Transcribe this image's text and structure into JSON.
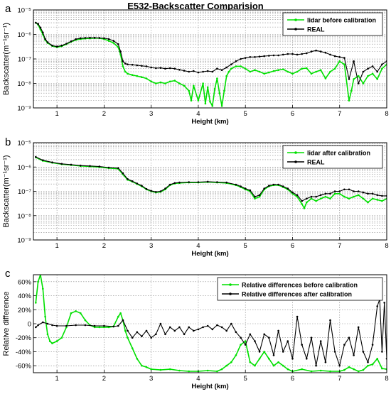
{
  "figure": {
    "title": "E532-Backscatter Comparision"
  },
  "chart_data": [
    {
      "type": "line",
      "panel_label": "a",
      "xlabel": "Height (km)",
      "ylabel": "Backscatter(m⁻¹sr⁻¹)",
      "xlim": [
        0.5,
        8
      ],
      "ylim": [
        1e-09,
        1e-05
      ],
      "yscale": "log",
      "x_ticks": [
        "1",
        "2",
        "3",
        "4",
        "5",
        "6",
        "7",
        "8"
      ],
      "y_ticks": [
        "10⁻⁹",
        "10⁻⁸",
        "10⁻⁷",
        "10⁻⁶",
        "10⁻⁵"
      ],
      "grid": true,
      "legend_position": "top-right",
      "series": [
        {
          "name": "lidar before calibration",
          "color": "#00e000",
          "x": [
            0.55,
            0.6,
            0.65,
            0.7,
            0.75,
            0.8,
            0.9,
            1.0,
            1.1,
            1.2,
            1.3,
            1.4,
            1.5,
            1.6,
            1.7,
            1.8,
            1.9,
            2.0,
            2.1,
            2.2,
            2.3,
            2.35,
            2.4,
            2.45,
            2.5,
            2.6,
            2.7,
            2.8,
            2.9,
            3.0,
            3.1,
            3.2,
            3.3,
            3.4,
            3.5,
            3.6,
            3.7,
            3.8,
            3.85,
            3.9,
            4.0,
            4.1,
            4.15,
            4.2,
            4.25,
            4.3,
            4.35,
            4.4,
            4.45,
            4.5,
            4.55,
            4.6,
            4.65,
            4.7,
            4.8,
            4.9,
            5.0,
            5.1,
            5.2,
            5.3,
            5.4,
            5.5,
            5.6,
            5.7,
            5.8,
            5.9,
            6.0,
            6.1,
            6.2,
            6.3,
            6.4,
            6.5,
            6.6,
            6.7,
            6.8,
            6.9,
            7.0,
            7.1,
            7.2,
            7.25,
            7.3,
            7.4,
            7.5,
            7.6,
            7.7,
            7.8,
            7.9,
            8.0
          ],
          "y": [
            3e-06,
            2.5e-06,
            1.6e-06,
            1e-06,
            6e-07,
            4.5e-07,
            3.4e-07,
            3e-07,
            3.3e-07,
            4e-07,
            5e-07,
            6e-07,
            6.5e-07,
            6.8e-07,
            6.9e-07,
            7e-07,
            7e-07,
            6.5e-07,
            5.5e-07,
            4.5e-07,
            3e-07,
            1.5e-07,
            5e-08,
            3e-08,
            2.5e-08,
            2.2e-08,
            2e-08,
            1.8e-08,
            1.6e-08,
            1.2e-08,
            1e-08,
            1.1e-08,
            1e-08,
            1.2e-08,
            1.3e-08,
            1e-08,
            8e-09,
            5e-09,
            2e-09,
            8e-09,
            2e-09,
            1e-08,
            1.5e-09,
            7e-09,
            1.8e-09,
            1.2e-09,
            6e-09,
            1.6e-08,
            4e-09,
            1.2e-09,
            5e-09,
            2e-08,
            3e-08,
            4e-08,
            5e-08,
            5e-08,
            4e-08,
            3e-08,
            3.5e-08,
            3e-08,
            2.5e-08,
            2.8e-08,
            3.2e-08,
            3.5e-08,
            3.8e-08,
            3e-08,
            2.5e-08,
            3e-08,
            4e-08,
            4.2e-08,
            2.5e-08,
            3e-08,
            3.5e-08,
            1.6e-08,
            3e-08,
            4e-08,
            8e-08,
            6e-08,
            2e-09,
            5e-09,
            1.5e-08,
            2e-08,
            1e-08,
            2e-08,
            2.5e-08,
            1.5e-08,
            4e-08,
            6e-08
          ]
        },
        {
          "name": "REAL",
          "color": "#000000",
          "x": [
            0.55,
            0.6,
            0.65,
            0.7,
            0.75,
            0.8,
            0.9,
            1.0,
            1.1,
            1.2,
            1.3,
            1.4,
            1.5,
            1.6,
            1.7,
            1.8,
            1.9,
            2.0,
            2.1,
            2.2,
            2.3,
            2.35,
            2.4,
            2.45,
            2.5,
            2.6,
            2.7,
            2.8,
            2.9,
            3.0,
            3.1,
            3.2,
            3.3,
            3.4,
            3.5,
            3.6,
            3.7,
            3.8,
            3.9,
            4.0,
            4.1,
            4.2,
            4.3,
            4.4,
            4.5,
            4.6,
            4.7,
            4.8,
            4.9,
            5.0,
            5.1,
            5.2,
            5.3,
            5.4,
            5.5,
            5.6,
            5.7,
            5.8,
            5.9,
            6.0,
            6.1,
            6.2,
            6.3,
            6.4,
            6.5,
            6.6,
            6.7,
            6.8,
            6.9,
            7.0,
            7.1,
            7.2,
            7.3,
            7.4,
            7.5,
            7.6,
            7.7,
            7.8,
            7.9,
            8.0
          ],
          "y": [
            3e-06,
            2.7e-06,
            1.9e-06,
            1.2e-06,
            6.5e-07,
            4.8e-07,
            3.5e-07,
            3.2e-07,
            3.5e-07,
            4.2e-07,
            5.2e-07,
            6.4e-07,
            7e-07,
            7.2e-07,
            7.3e-07,
            7.3e-07,
            7.2e-07,
            7e-07,
            6.5e-07,
            5.5e-07,
            4e-07,
            2e-07,
            8e-08,
            6.5e-08,
            6e-08,
            5.8e-08,
            5.5e-08,
            5.2e-08,
            5e-08,
            4.5e-08,
            4.2e-08,
            4.3e-08,
            4e-08,
            4.2e-08,
            4e-08,
            3.6e-08,
            3.3e-08,
            3e-08,
            3.2e-08,
            2.8e-08,
            3e-08,
            3.2e-08,
            3e-08,
            4e-08,
            3.5e-08,
            4.5e-08,
            6e-08,
            8e-08,
            1e-07,
            1.1e-07,
            1.2e-07,
            1.2e-07,
            1.25e-07,
            1.3e-07,
            1.35e-07,
            1.4e-07,
            1.4e-07,
            1.5e-07,
            1.6e-07,
            1.6e-07,
            1.5e-07,
            1.6e-07,
            1.7e-07,
            2e-07,
            2.2e-07,
            2e-07,
            1.8e-07,
            1.5e-07,
            1.3e-07,
            1.2e-07,
            1.1e-07,
            1.5e-08,
            8e-08,
            1e-08,
            3e-08,
            4e-08,
            5e-08,
            3e-08,
            6e-08,
            8e-08
          ]
        }
      ]
    },
    {
      "type": "line",
      "panel_label": "b",
      "xlabel": "Height (km)",
      "ylabel": "Backscatter(m⁻¹sr⁻¹)",
      "xlim": [
        0.5,
        8
      ],
      "ylim": [
        1e-09,
        1e-05
      ],
      "yscale": "log",
      "x_ticks": [
        "1",
        "2",
        "3",
        "4",
        "5",
        "6",
        "7",
        "8"
      ],
      "y_ticks": [
        "10⁻⁹",
        "10⁻⁸",
        "10⁻⁷",
        "10⁻⁶",
        "10⁻⁵"
      ],
      "grid": true,
      "legend_position": "top-right",
      "series": [
        {
          "name": "lidar after calibration",
          "color": "#00e000",
          "x": [
            0.55,
            0.7,
            0.9,
            1.1,
            1.3,
            1.5,
            1.7,
            1.9,
            2.1,
            2.3,
            2.4,
            2.5,
            2.6,
            2.7,
            2.8,
            2.9,
            3.0,
            3.1,
            3.2,
            3.3,
            3.4,
            3.5,
            3.6,
            3.8,
            4.0,
            4.2,
            4.4,
            4.6,
            4.8,
            4.9,
            5.0,
            5.1,
            5.2,
            5.3,
            5.4,
            5.5,
            5.6,
            5.7,
            5.8,
            5.9,
            6.0,
            6.1,
            6.2,
            6.25,
            6.3,
            6.4,
            6.5,
            6.6,
            6.7,
            6.8,
            6.9,
            7.0,
            7.1,
            7.2,
            7.3,
            7.4,
            7.5,
            7.6,
            7.7,
            7.8,
            7.9,
            8.0
          ],
          "y": [
            2.5e-06,
            1.8e-06,
            1.5e-06,
            1.3e-06,
            1.2e-06,
            1.1e-06,
            1.05e-06,
            1e-06,
            9e-07,
            8.5e-07,
            5e-07,
            3e-07,
            2.5e-07,
            2e-07,
            1.6e-07,
            1.2e-07,
            1e-07,
            9e-08,
            9.5e-08,
            1.2e-07,
            1.8e-07,
            2.1e-07,
            2.2e-07,
            2.3e-07,
            2.3e-07,
            2.4e-07,
            2.3e-07,
            2.2e-07,
            1.8e-07,
            1.5e-07,
            1.2e-07,
            1e-07,
            5e-08,
            6e-08,
            1.2e-07,
            1.6e-07,
            1.8e-07,
            1.8e-07,
            1.5e-07,
            1.2e-07,
            8e-08,
            6e-08,
            3e-08,
            2e-08,
            3.5e-08,
            5e-08,
            4e-08,
            5e-08,
            6e-08,
            5e-08,
            8e-08,
            8e-08,
            6e-08,
            5e-08,
            6e-08,
            7e-08,
            5e-08,
            3.5e-08,
            5e-08,
            4.5e-08,
            4e-08,
            5e-08
          ]
        },
        {
          "name": "REAL",
          "color": "#000000",
          "x": [
            0.55,
            0.7,
            0.9,
            1.1,
            1.3,
            1.5,
            1.7,
            1.9,
            2.1,
            2.3,
            2.4,
            2.5,
            2.6,
            2.7,
            2.8,
            2.9,
            3.0,
            3.1,
            3.2,
            3.3,
            3.4,
            3.5,
            3.6,
            3.8,
            4.0,
            4.2,
            4.4,
            4.6,
            4.8,
            4.9,
            5.0,
            5.1,
            5.2,
            5.3,
            5.4,
            5.5,
            5.6,
            5.7,
            5.8,
            5.9,
            6.0,
            6.1,
            6.2,
            6.3,
            6.4,
            6.5,
            6.6,
            6.7,
            6.8,
            6.9,
            7.0,
            7.1,
            7.2,
            7.3,
            7.4,
            7.5,
            7.6,
            7.7,
            7.8,
            7.9,
            8.0
          ],
          "y": [
            2.6e-06,
            1.9e-06,
            1.55e-06,
            1.35e-06,
            1.25e-06,
            1.15e-06,
            1.1e-06,
            1.05e-06,
            9.5e-07,
            9e-07,
            5.5e-07,
            3.2e-07,
            2.6e-07,
            2.1e-07,
            1.7e-07,
            1.25e-07,
            1.05e-07,
            9.5e-08,
            1e-07,
            1.3e-07,
            1.9e-07,
            2.2e-07,
            2.3e-07,
            2.4e-07,
            2.4e-07,
            2.5e-07,
            2.4e-07,
            2.3e-07,
            1.9e-07,
            1.6e-07,
            1.3e-07,
            1.1e-07,
            6e-08,
            7e-08,
            1.3e-07,
            1.7e-07,
            1.9e-07,
            1.9e-07,
            1.6e-07,
            1.3e-07,
            9e-08,
            7e-08,
            4e-08,
            5e-08,
            6e-08,
            6e-08,
            7e-08,
            8e-08,
            8e-08,
            1e-07,
            1e-07,
            1.2e-07,
            1.2e-07,
            1e-07,
            1e-07,
            9e-08,
            8e-08,
            8e-08,
            7e-08,
            6.5e-08,
            6.5e-08
          ]
        }
      ]
    },
    {
      "type": "line",
      "panel_label": "c",
      "xlabel": "Height (km)",
      "ylabel": "Relative difference",
      "xlim": [
        0.5,
        8
      ],
      "ylim": [
        -70,
        70
      ],
      "x_ticks": [
        "1",
        "2",
        "3",
        "4",
        "5",
        "6",
        "7",
        "8"
      ],
      "y_ticks": [
        "-60%",
        "-40%",
        "-20%",
        "0",
        "20%",
        "40%",
        "60%"
      ],
      "grid": true,
      "legend_position": "top-right",
      "series": [
        {
          "name": "Relative differences before calibration",
          "color": "#00e000",
          "x": [
            0.55,
            0.6,
            0.65,
            0.7,
            0.75,
            0.8,
            0.85,
            0.9,
            1.0,
            1.1,
            1.2,
            1.3,
            1.4,
            1.5,
            1.6,
            1.7,
            1.8,
            1.9,
            2.0,
            2.1,
            2.2,
            2.3,
            2.35,
            2.4,
            2.45,
            2.5,
            2.6,
            2.7,
            2.8,
            2.9,
            3.0,
            3.2,
            3.4,
            3.6,
            3.8,
            4.0,
            4.2,
            4.4,
            4.5,
            4.6,
            4.7,
            4.8,
            4.9,
            5.0,
            5.05,
            5.1,
            5.2,
            5.3,
            5.4,
            5.5,
            5.6,
            5.7,
            5.8,
            5.9,
            6.0,
            6.2,
            6.4,
            6.6,
            6.8,
            7.0,
            7.1,
            7.2,
            7.3,
            7.4,
            7.5,
            7.6,
            7.7,
            7.8,
            7.9,
            8.0
          ],
          "y": [
            30,
            60,
            70,
            50,
            10,
            -15,
            -25,
            -28,
            -25,
            -20,
            -5,
            15,
            18,
            15,
            5,
            -2,
            -5,
            -5,
            -5,
            -5,
            -4,
            10,
            15,
            5,
            -10,
            -20,
            -35,
            -50,
            -60,
            -62,
            -65,
            -66,
            -65,
            -67,
            -68,
            -68,
            -67,
            -68,
            -65,
            -60,
            -55,
            -45,
            -30,
            -25,
            -40,
            -55,
            -60,
            -50,
            -40,
            -50,
            -60,
            -55,
            -60,
            -65,
            -68,
            -65,
            -68,
            -67,
            -68,
            -68,
            -66,
            -62,
            -65,
            -68,
            -66,
            -60,
            -58,
            -50,
            -64,
            -65
          ]
        },
        {
          "name": "Relative differences after calibration",
          "color": "#000000",
          "x": [
            0.55,
            0.6,
            0.7,
            0.8,
            0.9,
            1.0,
            1.2,
            1.4,
            1.6,
            1.8,
            2.0,
            2.2,
            2.3,
            2.4,
            2.5,
            2.6,
            2.7,
            2.8,
            2.9,
            3.0,
            3.1,
            3.2,
            3.3,
            3.4,
            3.5,
            3.6,
            3.7,
            3.8,
            3.9,
            4.0,
            4.1,
            4.2,
            4.3,
            4.4,
            4.5,
            4.6,
            4.7,
            4.8,
            4.9,
            5.0,
            5.1,
            5.2,
            5.3,
            5.4,
            5.5,
            5.6,
            5.7,
            5.8,
            5.9,
            6.0,
            6.1,
            6.2,
            6.3,
            6.4,
            6.5,
            6.6,
            6.7,
            6.8,
            6.9,
            7.0,
            7.1,
            7.2,
            7.3,
            7.4,
            7.5,
            7.6,
            7.7,
            7.8,
            7.85,
            7.9,
            7.95,
            8.0
          ],
          "y": [
            -5,
            -2,
            2,
            0,
            -2,
            -3,
            -3,
            -2,
            -2,
            -3,
            -3,
            -4,
            -3,
            5,
            -10,
            -20,
            -12,
            -18,
            -10,
            -20,
            -15,
            0,
            -15,
            -5,
            -10,
            -5,
            -15,
            -5,
            -10,
            -8,
            -5,
            -3,
            -8,
            -2,
            -5,
            -10,
            0,
            -12,
            -20,
            -30,
            -15,
            -25,
            -40,
            -15,
            -20,
            -45,
            -10,
            -40,
            -25,
            -50,
            10,
            -30,
            -50,
            -20,
            -60,
            -25,
            -55,
            5,
            -40,
            -60,
            -30,
            -20,
            -45,
            -5,
            -40,
            -55,
            -30,
            25,
            35,
            -40,
            30,
            -50
          ]
        }
      ]
    }
  ]
}
